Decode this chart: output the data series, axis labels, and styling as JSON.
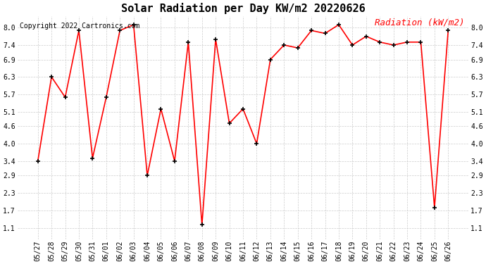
{
  "title": "Solar Radiation per Day KW/m2 20220626",
  "copyright": "Copyright 2022 Cartronics.com",
  "legend_label": "Radiation (kW/m2)",
  "dates": [
    "05/27",
    "05/28",
    "05/29",
    "05/30",
    "05/31",
    "06/01",
    "06/02",
    "06/03",
    "06/04",
    "06/05",
    "06/06",
    "06/07",
    "06/08",
    "06/09",
    "06/10",
    "06/11",
    "06/12",
    "06/13",
    "06/14",
    "06/15",
    "06/16",
    "06/17",
    "06/18",
    "06/19",
    "06/20",
    "06/21",
    "06/22",
    "06/23",
    "06/24",
    "06/25",
    "06/26"
  ],
  "values": [
    3.4,
    6.3,
    5.6,
    7.9,
    3.5,
    5.6,
    7.9,
    8.1,
    2.9,
    5.2,
    3.4,
    7.5,
    1.2,
    7.6,
    4.7,
    5.2,
    4.0,
    6.9,
    7.4,
    7.3,
    7.9,
    7.8,
    8.1,
    7.4,
    7.7,
    7.5,
    7.4,
    7.5,
    7.5,
    1.8,
    7.9
  ],
  "line_color": "#ff0000",
  "marker_color": "#000000",
  "grid_color": "#cccccc",
  "background_color": "#ffffff",
  "title_fontsize": 11,
  "copyright_fontsize": 7,
  "legend_fontsize": 9,
  "tick_fontsize": 7,
  "yticks": [
    1.1,
    1.7,
    2.3,
    2.9,
    3.4,
    4.0,
    4.6,
    5.1,
    5.7,
    6.3,
    6.9,
    7.4,
    8.0
  ],
  "ylim": [
    0.7,
    8.4
  ]
}
